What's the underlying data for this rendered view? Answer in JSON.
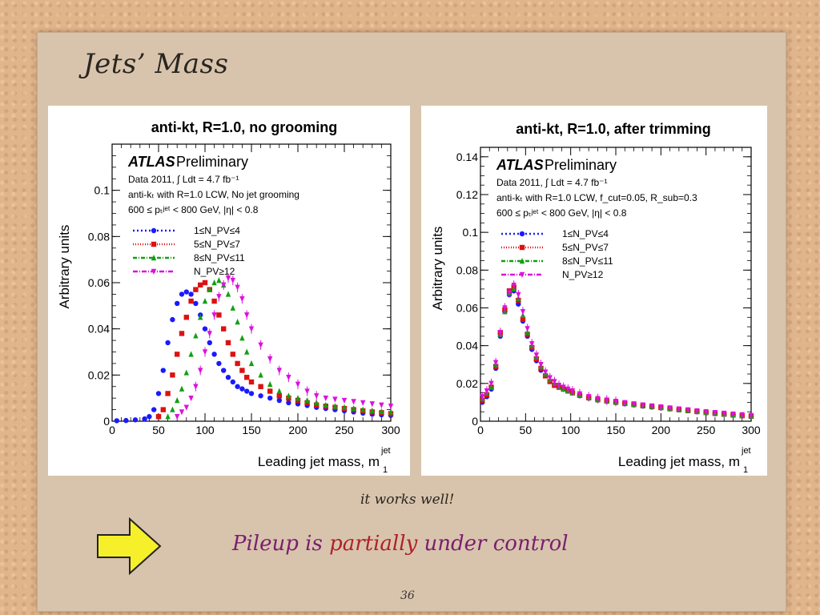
{
  "slide": {
    "title": "Jets’ Mass",
    "note": "it works well!",
    "conclusion_part1": "Pileup is ",
    "conclusion_highlight": "partially",
    "conclusion_part2": " under control",
    "page_number": "36",
    "arrow_color": "#f5f02a"
  },
  "chart_data": [
    {
      "type": "scatter",
      "title": "anti-kt, R=1.0, no grooming",
      "xlabel": "Leading jet mass, m",
      "xlabel_sup": "jet",
      "xlabel_sub": "1",
      "ylabel": "Arbitrary units",
      "xlim": [
        0,
        300
      ],
      "ylim": [
        0,
        0.12
      ],
      "xticks": [
        0,
        50,
        100,
        150,
        200,
        250,
        300
      ],
      "yticks": [
        0,
        0.02,
        0.04,
        0.06,
        0.08,
        0.1
      ],
      "ytick_labels": [
        "0",
        "0.02",
        "0.04",
        "0.06",
        "0.08",
        "0.1"
      ],
      "grid": false,
      "legend_placement": "top-left",
      "atlas_label": "ATLAS",
      "atlas_sub": "Preliminary",
      "info_lines": [
        "Data 2011, ∫ Ldt = 4.7 fb⁻¹",
        "anti-kₜ with R=1.0 LCW, No jet grooming",
        "600 ≤ pₜʲᵉᵗ < 800 GeV, |η| < 0.8"
      ],
      "series": [
        {
          "name": "1≤N_PV≤4",
          "color": "#1a1aff",
          "marker": "circle",
          "x": [
            5,
            15,
            25,
            35,
            40,
            45,
            50,
            55,
            60,
            65,
            70,
            75,
            80,
            85,
            90,
            95,
            100,
            105,
            110,
            115,
            120,
            125,
            130,
            135,
            140,
            145,
            150,
            160,
            170,
            180,
            190,
            200,
            210,
            220,
            230,
            240,
            250,
            260,
            270,
            280,
            290,
            300
          ],
          "y": [
            0.0002,
            0.0003,
            0.0006,
            0.001,
            0.002,
            0.005,
            0.012,
            0.022,
            0.034,
            0.044,
            0.051,
            0.055,
            0.056,
            0.055,
            0.051,
            0.046,
            0.04,
            0.034,
            0.029,
            0.025,
            0.022,
            0.019,
            0.017,
            0.015,
            0.014,
            0.013,
            0.012,
            0.011,
            0.01,
            0.009,
            0.008,
            0.0075,
            0.0068,
            0.006,
            0.0055,
            0.005,
            0.0045,
            0.004,
            0.0035,
            0.003,
            0.0028,
            0.0025
          ]
        },
        {
          "name": "5≤N_PV≤7",
          "color": "#dd1111",
          "marker": "square",
          "x": [
            50,
            55,
            60,
            65,
            70,
            75,
            80,
            85,
            90,
            95,
            100,
            105,
            110,
            115,
            120,
            125,
            130,
            135,
            140,
            145,
            150,
            160,
            170,
            180,
            190,
            200,
            210,
            220,
            230,
            240,
            250,
            260,
            270,
            280,
            290,
            300
          ],
          "y": [
            0.002,
            0.005,
            0.012,
            0.02,
            0.029,
            0.038,
            0.045,
            0.052,
            0.057,
            0.059,
            0.06,
            0.057,
            0.052,
            0.046,
            0.04,
            0.034,
            0.029,
            0.025,
            0.022,
            0.019,
            0.017,
            0.015,
            0.013,
            0.011,
            0.01,
            0.009,
            0.008,
            0.007,
            0.0065,
            0.006,
            0.0055,
            0.005,
            0.0045,
            0.004,
            0.0037,
            0.0033
          ]
        },
        {
          "name": "8≤N_PV≤11",
          "color": "#11a011",
          "marker": "triangle",
          "x": [
            60,
            65,
            70,
            75,
            80,
            85,
            90,
            95,
            100,
            105,
            110,
            115,
            120,
            125,
            130,
            135,
            140,
            145,
            150,
            160,
            170,
            180,
            190,
            200,
            210,
            220,
            230,
            240,
            250,
            260,
            270,
            280,
            290,
            300
          ],
          "y": [
            0.002,
            0.005,
            0.009,
            0.014,
            0.021,
            0.029,
            0.037,
            0.045,
            0.052,
            0.057,
            0.06,
            0.061,
            0.059,
            0.055,
            0.049,
            0.043,
            0.036,
            0.03,
            0.025,
            0.02,
            0.016,
            0.013,
            0.011,
            0.01,
            0.009,
            0.008,
            0.007,
            0.0065,
            0.006,
            0.0055,
            0.005,
            0.0046,
            0.0042,
            0.004
          ]
        },
        {
          "name": "N_PV≥12",
          "color": "#dd11dd",
          "marker": "triangle-down",
          "x": [
            70,
            75,
            80,
            85,
            90,
            95,
            100,
            105,
            110,
            115,
            120,
            125,
            130,
            135,
            140,
            145,
            150,
            160,
            170,
            180,
            190,
            200,
            210,
            220,
            230,
            240,
            250,
            260,
            270,
            280,
            290,
            300
          ],
          "y": [
            0.002,
            0.004,
            0.006,
            0.01,
            0.015,
            0.022,
            0.03,
            0.038,
            0.046,
            0.054,
            0.059,
            0.062,
            0.061,
            0.058,
            0.053,
            0.046,
            0.04,
            0.033,
            0.027,
            0.022,
            0.019,
            0.016,
            0.013,
            0.011,
            0.01,
            0.0095,
            0.009,
            0.0085,
            0.008,
            0.0075,
            0.007,
            0.0065
          ]
        }
      ]
    },
    {
      "type": "scatter",
      "title": "anti-kt, R=1.0, after trimming",
      "xlabel": "Leading jet mass, m",
      "xlabel_sup": "jet",
      "xlabel_sub": "1",
      "ylabel": "Arbitrary units",
      "xlim": [
        0,
        300
      ],
      "ylim": [
        0,
        0.145
      ],
      "xticks": [
        0,
        50,
        100,
        150,
        200,
        250,
        300
      ],
      "yticks": [
        0,
        0.02,
        0.04,
        0.06,
        0.08,
        0.1,
        0.12,
        0.14
      ],
      "ytick_labels": [
        "0",
        "0.02",
        "0.04",
        "0.06",
        "0.08",
        "0.1",
        "0.12",
        "0.14"
      ],
      "grid": false,
      "legend_placement": "top-left",
      "atlas_label": "ATLAS",
      "atlas_sub": "Preliminary",
      "info_lines": [
        "Data 2011, ∫ Ldt = 4.7 fb⁻¹",
        "anti-kₜ with R=1.0 LCW, f_cut=0.05, R_sub=0.3",
        "600 ≤ pₜʲᵉᵗ < 800 GeV, |η| < 0.8"
      ],
      "series": [
        {
          "name": "1≤N_PV≤4",
          "color": "#1a1aff",
          "marker": "circle",
          "x": [
            2,
            7,
            12,
            17,
            22,
            27,
            32,
            37,
            42,
            47,
            52,
            57,
            62,
            67,
            72,
            77,
            82,
            87,
            92,
            97,
            102,
            110,
            120,
            130,
            140,
            150,
            160,
            170,
            180,
            190,
            200,
            210,
            220,
            230,
            240,
            250,
            260,
            270,
            280,
            290,
            300
          ],
          "y": [
            0.01,
            0.013,
            0.017,
            0.028,
            0.045,
            0.058,
            0.067,
            0.069,
            0.062,
            0.053,
            0.045,
            0.038,
            0.032,
            0.027,
            0.024,
            0.021,
            0.019,
            0.018,
            0.017,
            0.016,
            0.015,
            0.0135,
            0.0122,
            0.0112,
            0.0105,
            0.0099,
            0.0092,
            0.0086,
            0.008,
            0.0075,
            0.007,
            0.0065,
            0.006,
            0.0055,
            0.005,
            0.0045,
            0.004,
            0.0036,
            0.0032,
            0.0028,
            0.0025
          ]
        },
        {
          "name": "5≤N_PV≤7",
          "color": "#dd1111",
          "marker": "square",
          "x": [
            2,
            7,
            12,
            17,
            22,
            27,
            32,
            37,
            42,
            47,
            52,
            57,
            62,
            67,
            72,
            77,
            82,
            87,
            92,
            97,
            102,
            110,
            120,
            130,
            140,
            150,
            160,
            170,
            180,
            190,
            200,
            210,
            220,
            230,
            240,
            250,
            260,
            270,
            280,
            290,
            300
          ],
          "y": [
            0.011,
            0.014,
            0.018,
            0.029,
            0.047,
            0.059,
            0.069,
            0.071,
            0.064,
            0.054,
            0.046,
            0.039,
            0.033,
            0.028,
            0.024,
            0.021,
            0.019,
            0.018,
            0.017,
            0.016,
            0.015,
            0.0137,
            0.0124,
            0.0114,
            0.0107,
            0.01,
            0.0094,
            0.0088,
            0.0082,
            0.0077,
            0.0072,
            0.0066,
            0.0061,
            0.0056,
            0.0051,
            0.0046,
            0.0041,
            0.0037,
            0.0033,
            0.0029,
            0.0026
          ]
        },
        {
          "name": "8≤N_PV≤11",
          "color": "#11a011",
          "marker": "triangle",
          "x": [
            2,
            7,
            12,
            17,
            22,
            27,
            32,
            37,
            42,
            47,
            52,
            57,
            62,
            67,
            72,
            77,
            82,
            87,
            92,
            97,
            102,
            110,
            120,
            130,
            140,
            150,
            160,
            170,
            180,
            190,
            200,
            210,
            220,
            230,
            240,
            250,
            260,
            270,
            280,
            290,
            300
          ],
          "y": [
            0.012,
            0.015,
            0.018,
            0.03,
            0.046,
            0.058,
            0.068,
            0.07,
            0.065,
            0.056,
            0.047,
            0.04,
            0.034,
            0.029,
            0.025,
            0.022,
            0.02,
            0.018,
            0.017,
            0.016,
            0.0152,
            0.0138,
            0.0125,
            0.0115,
            0.0107,
            0.0101,
            0.0095,
            0.0089,
            0.0083,
            0.0078,
            0.0073,
            0.0067,
            0.0062,
            0.0057,
            0.0052,
            0.0047,
            0.0042,
            0.0038,
            0.0034,
            0.003,
            0.0027
          ]
        },
        {
          "name": "N_PV≥12",
          "color": "#dd11dd",
          "marker": "triangle-down",
          "x": [
            2,
            7,
            12,
            17,
            22,
            27,
            32,
            37,
            42,
            47,
            52,
            57,
            62,
            67,
            72,
            77,
            82,
            87,
            92,
            97,
            102,
            110,
            120,
            130,
            140,
            150,
            160,
            170,
            180,
            190,
            200,
            210,
            220,
            230,
            240,
            250,
            260,
            270,
            280,
            290,
            300
          ],
          "y": [
            0.013,
            0.016,
            0.02,
            0.031,
            0.047,
            0.06,
            0.068,
            0.072,
            0.067,
            0.058,
            0.049,
            0.041,
            0.035,
            0.03,
            0.026,
            0.023,
            0.021,
            0.019,
            0.018,
            0.017,
            0.016,
            0.0145,
            0.013,
            0.012,
            0.0112,
            0.0105,
            0.0098,
            0.0092,
            0.0086,
            0.0081,
            0.0076,
            0.007,
            0.0065,
            0.006,
            0.0055,
            0.005,
            0.0046,
            0.0042,
            0.0038,
            0.0034,
            0.003
          ]
        }
      ]
    }
  ]
}
